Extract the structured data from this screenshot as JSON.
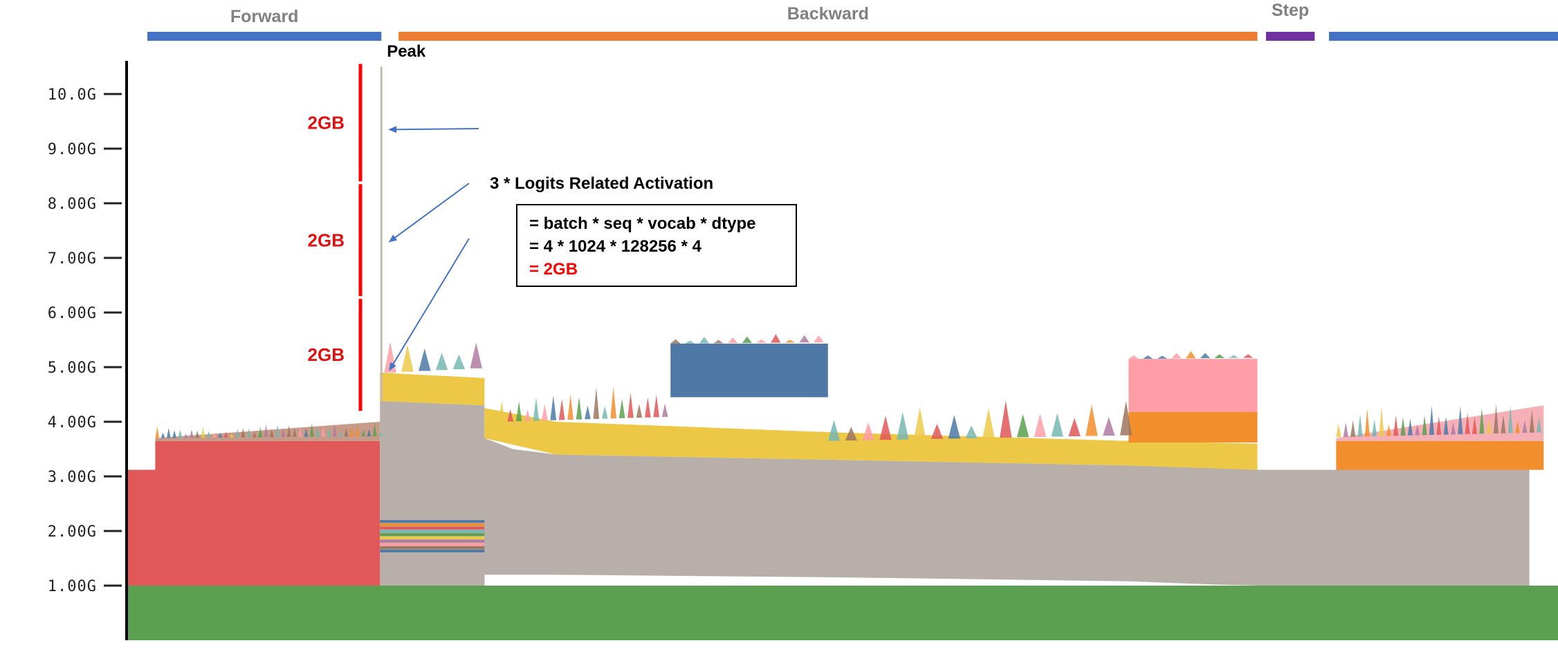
{
  "chart_data": {
    "type": "area",
    "title": "",
    "xlabel": "",
    "ylabel": "",
    "ylim": [
      0,
      10.7
    ],
    "y_ticks": [
      {
        "value": 1,
        "label": "1.00G"
      },
      {
        "value": 2,
        "label": "2.00G"
      },
      {
        "value": 3,
        "label": "3.00G"
      },
      {
        "value": 4,
        "label": "4.00G"
      },
      {
        "value": 5,
        "label": "5.00G"
      },
      {
        "value": 6,
        "label": "6.00G"
      },
      {
        "value": 7,
        "label": "7.00G"
      },
      {
        "value": 8,
        "label": "8.00G"
      },
      {
        "value": 9,
        "label": "9.00G"
      },
      {
        "value": 10,
        "label": "10.0G"
      }
    ],
    "phases": [
      {
        "name": "Forward",
        "color": "#4472c4",
        "x": [
          0.0,
          0.178
        ]
      },
      {
        "name": "Backward",
        "color": "#ed7d31",
        "x": [
          0.19,
          0.79
        ]
      },
      {
        "name": "Step",
        "color": "#7030a0",
        "x": [
          0.796,
          0.83
        ]
      },
      {
        "name": "",
        "color": "#4472c4",
        "x": [
          0.84,
          1.0
        ]
      }
    ],
    "series_bands": [
      {
        "name": "base",
        "color": "#5aa050",
        "points": [
          [
            0,
            0.0,
            1.0
          ],
          [
            1,
            0.0,
            1.0
          ]
        ]
      },
      {
        "name": "forward-block",
        "color": "#e05858",
        "points": [
          [
            0,
            1.0,
            3.12
          ],
          [
            0.177,
            1.0,
            3.12
          ]
        ]
      },
      {
        "name": "forward-upper",
        "color": "#e05858",
        "points": [
          [
            0.02,
            3.12,
            3.65
          ],
          [
            0.177,
            3.12,
            3.65
          ]
        ]
      },
      {
        "name": "forward-accum",
        "color": "#c79a89",
        "points": [
          [
            0.02,
            3.65,
            3.7
          ],
          [
            0.177,
            3.65,
            4.0
          ]
        ]
      },
      {
        "name": "logits-red",
        "color": "#e05858",
        "points": [
          [
            0.177,
            1.0,
            1.52
          ],
          [
            0.25,
            1.0,
            1.52
          ]
        ]
      },
      {
        "name": "gray-main",
        "color": "#b8afaa",
        "points": [
          [
            0.177,
            1.0,
            4.38
          ],
          [
            0.25,
            1.0,
            4.3
          ],
          [
            0.25,
            1.2,
            3.7
          ],
          [
            0.27,
            1.2,
            3.5
          ],
          [
            0.3,
            1.2,
            3.4
          ],
          [
            0.5,
            1.15,
            3.3
          ],
          [
            0.7,
            1.08,
            3.2
          ],
          [
            0.76,
            1.02,
            3.15
          ],
          [
            0.79,
            1.0,
            3.12
          ],
          [
            0.98,
            1.0,
            3.12
          ]
        ]
      },
      {
        "name": "yellow",
        "color": "#ecc846",
        "points": [
          [
            0.177,
            4.38,
            4.9
          ],
          [
            0.25,
            4.3,
            4.8
          ],
          [
            0.25,
            3.7,
            4.25
          ],
          [
            0.3,
            3.4,
            4.0
          ],
          [
            0.5,
            3.3,
            3.8
          ],
          [
            0.7,
            3.2,
            3.65
          ],
          [
            0.79,
            3.12,
            3.6
          ]
        ]
      },
      {
        "name": "blue-block",
        "color": "#4e79a7",
        "points": [
          [
            0.38,
            4.45,
            5.43
          ],
          [
            0.49,
            4.45,
            5.43
          ]
        ]
      },
      {
        "name": "pink-block",
        "color": "#ff9da7",
        "points": [
          [
            0.7,
            4.18,
            5.15
          ],
          [
            0.79,
            4.18,
            5.15
          ]
        ]
      },
      {
        "name": "orange-block",
        "color": "#f28e2b",
        "points": [
          [
            0.7,
            3.62,
            4.18
          ],
          [
            0.79,
            3.62,
            4.18
          ]
        ]
      },
      {
        "name": "step-orange",
        "color": "#f28e2b",
        "points": [
          [
            0.845,
            3.12,
            3.65
          ],
          [
            0.99,
            3.12,
            3.65
          ]
        ]
      },
      {
        "name": "step-pink",
        "color": "#f5b0b6",
        "points": [
          [
            0.845,
            3.65,
            3.7
          ],
          [
            0.99,
            3.65,
            4.3
          ]
        ]
      }
    ],
    "peak": {
      "label": "Peak"
    },
    "gb_bars": [
      {
        "label": "2GB",
        "y_from": 8.4,
        "y_to": 10.55
      },
      {
        "label": "2GB",
        "y_from": 6.3,
        "y_to": 8.35
      },
      {
        "label": "2GB",
        "y_from": 4.2,
        "y_to": 6.25
      }
    ],
    "annotation": {
      "heading": "3 * Logits Related Activation",
      "lines": [
        {
          "text": "= batch * seq * vocab * dtype",
          "color": "#000000"
        },
        {
          "text": "= 4 * 1024 * 128256 * 4",
          "color": "#000000"
        },
        {
          "text": "= 2GB",
          "color": "#ff0000"
        }
      ],
      "arrow_targets_y": [
        9.35,
        7.3,
        4.95
      ]
    }
  }
}
